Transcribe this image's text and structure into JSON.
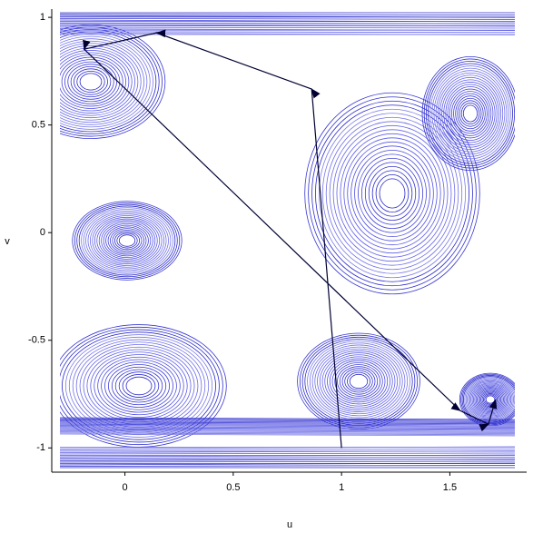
{
  "chart_data": {
    "type": "contour-path",
    "x_label": "u",
    "y_label": "v",
    "xlim": [
      -0.3,
      1.8
    ],
    "ylim": [
      -1.1,
      1.03
    ],
    "xticks": [
      0,
      0.5,
      1,
      1.5
    ],
    "yticks": [
      1,
      0.5,
      0,
      -0.5,
      -1
    ],
    "series": [
      {
        "color": "#000033",
        "x": [
          1.0,
          0.862,
          0.146,
          -0.188,
          1.548,
          1.678,
          1.711
        ],
        "values": [
          -1.0,
          0.667,
          0.928,
          0.852,
          -0.827,
          -0.89,
          -0.776
        ]
      }
    ]
  }
}
